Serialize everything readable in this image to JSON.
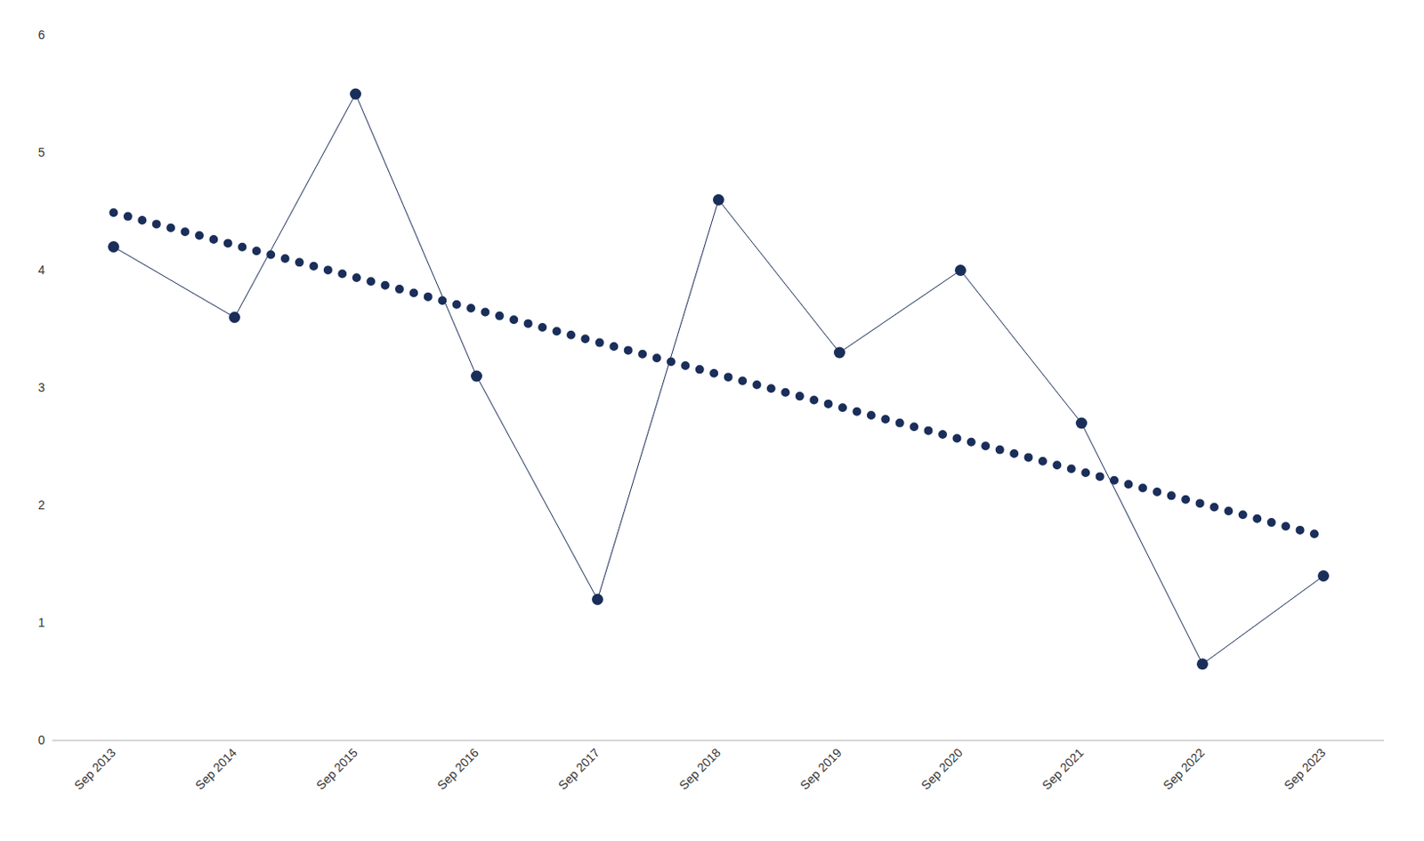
{
  "chart_data": {
    "type": "line",
    "categories": [
      "Sep 2013",
      "Sep 2014",
      "Sep 2015",
      "Sep 2016",
      "Sep 2017",
      "Sep 2018",
      "Sep 2019",
      "Sep 2020",
      "Sep 2021",
      "Sep 2022",
      "Sep 2023"
    ],
    "series": [
      {
        "color": "#1a2e5a",
        "marker": "o",
        "line_style": "solid",
        "values": [
          4.2,
          3.6,
          5.5,
          3.1,
          1.2,
          4.6,
          3.3,
          4.0,
          2.7,
          0.65,
          1.4
        ]
      },
      {
        "color": "#1a2e5a",
        "marker": "none",
        "line_style": "dotted",
        "values": [
          4.490909,
          4.215455,
          3.94,
          3.664545,
          3.389091,
          3.113636,
          2.838182,
          2.562727,
          2.287273,
          2.011818,
          1.736364
        ]
      }
    ],
    "ylim": [
      0,
      6
    ],
    "yticks": [
      0,
      1,
      2,
      3,
      4,
      5,
      6
    ],
    "grid": false
  }
}
